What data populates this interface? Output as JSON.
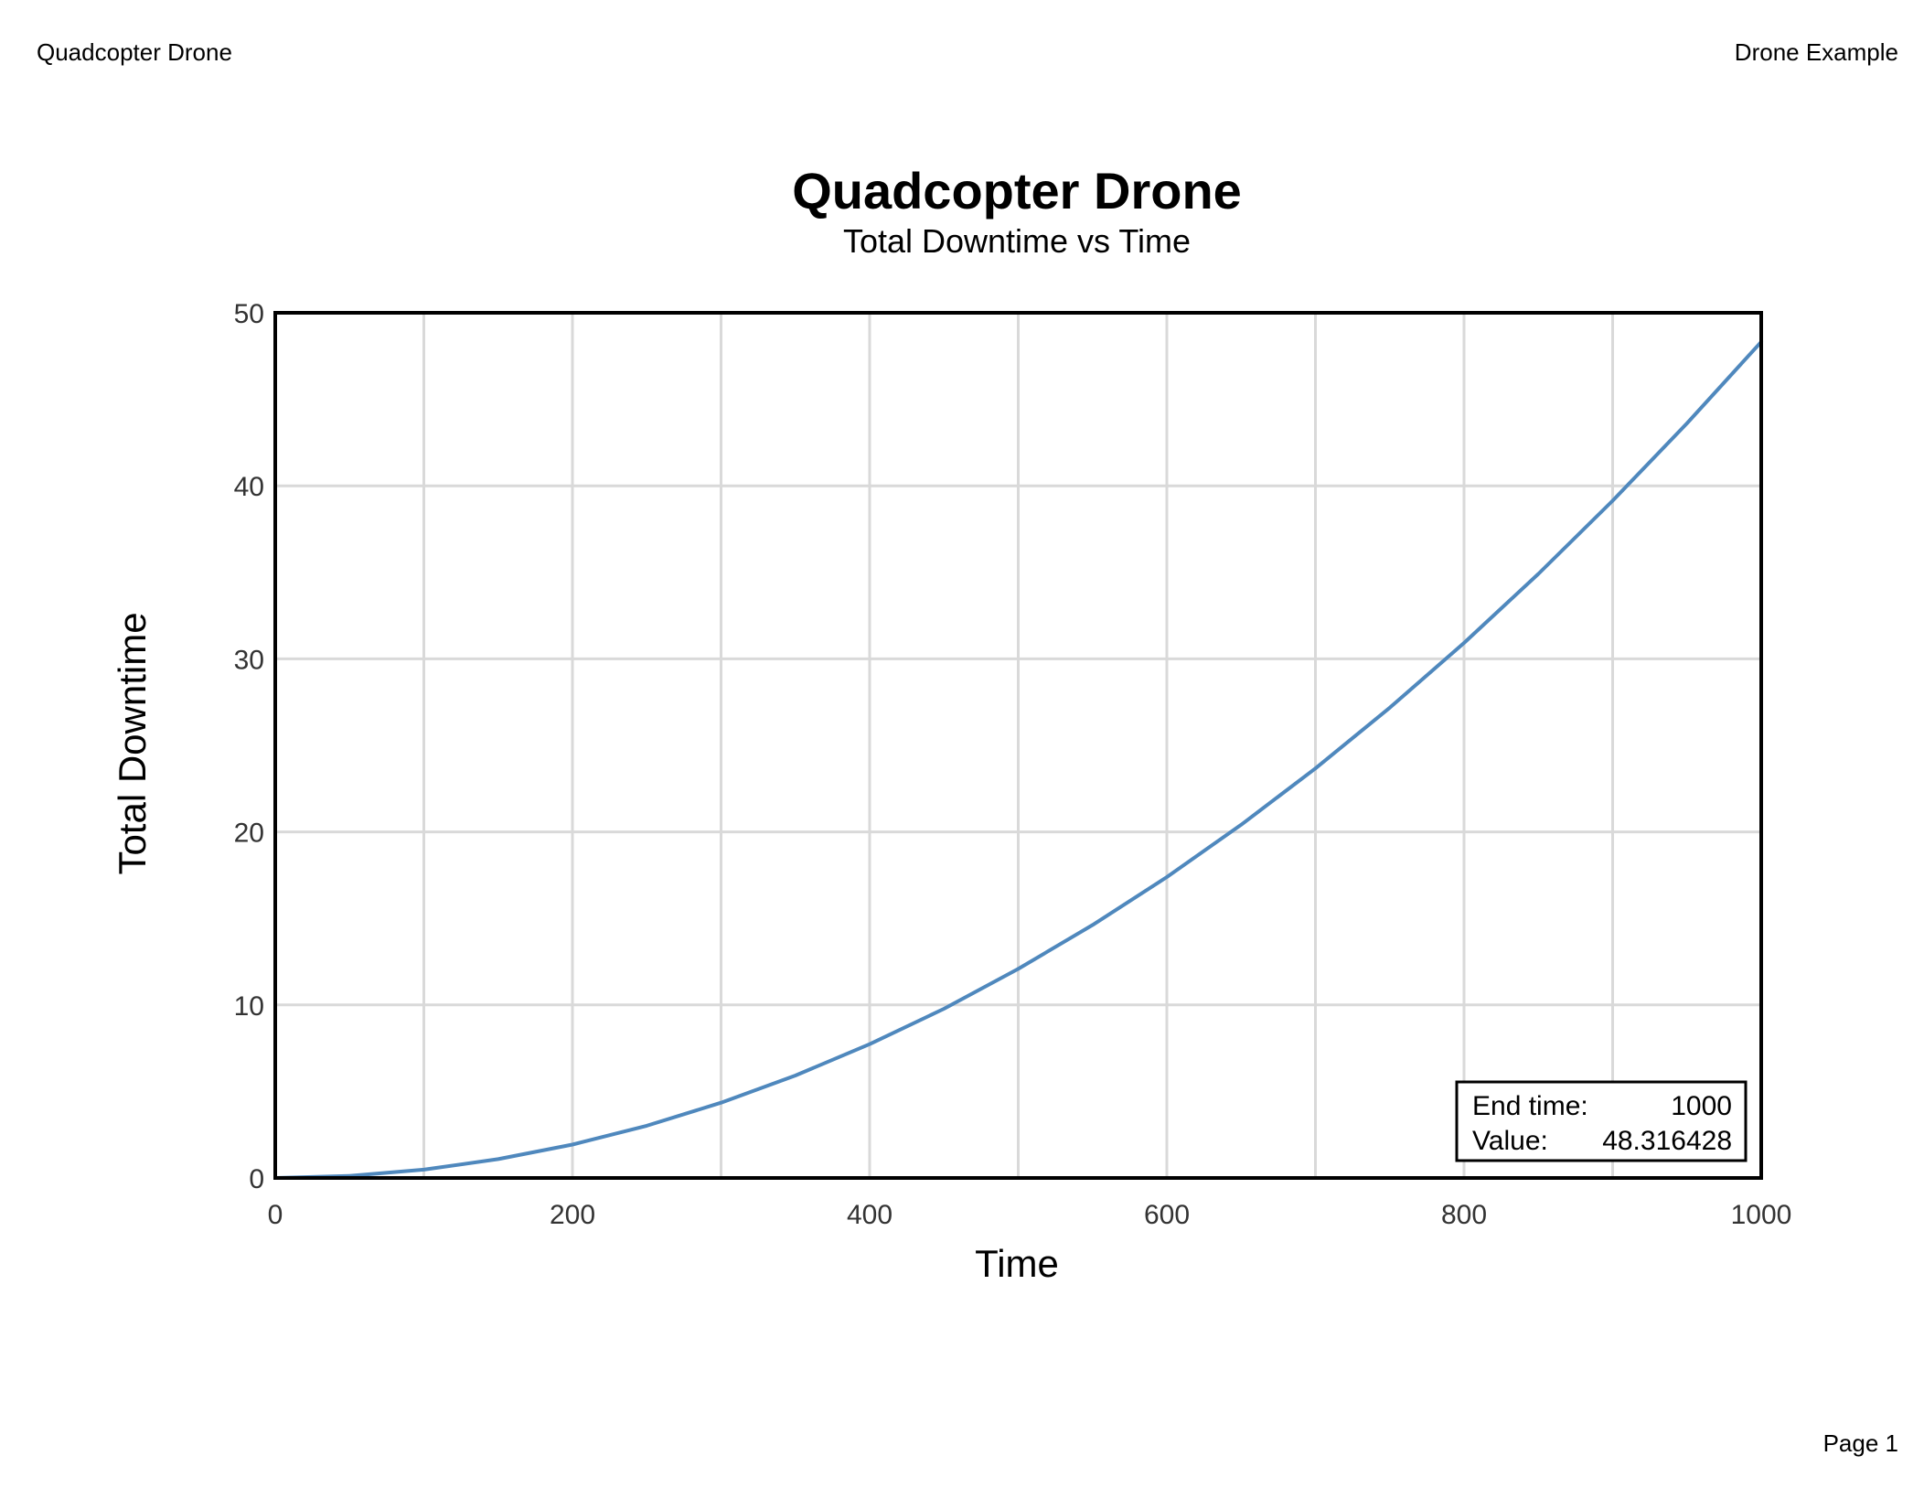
{
  "header": {
    "left": "Quadcopter Drone",
    "right": "Drone Example"
  },
  "footer": {
    "page": "Page 1"
  },
  "colors": {
    "series": "#4f88bd",
    "grid": "#d9d9d9",
    "frame": "#000000"
  },
  "chart_data": {
    "type": "line",
    "title": "Quadcopter Drone",
    "subtitle": "Total Downtime vs Time",
    "xlabel": "Time",
    "ylabel": "Total Downtime",
    "xlim": [
      0,
      1000
    ],
    "ylim": [
      0,
      50
    ],
    "xticks": [
      0,
      200,
      400,
      600,
      800,
      1000
    ],
    "yticks": [
      0,
      10,
      20,
      30,
      40,
      50
    ],
    "xgrid": [
      0,
      100,
      200,
      300,
      400,
      500,
      600,
      700,
      800,
      900,
      1000
    ],
    "ygrid": [
      0,
      10,
      20,
      30,
      40,
      50
    ],
    "grid": true,
    "series": [
      {
        "color": "#4f88bd",
        "x": [
          0,
          50,
          100,
          150,
          200,
          250,
          300,
          350,
          400,
          450,
          500,
          550,
          600,
          650,
          700,
          750,
          800,
          850,
          900,
          950,
          1000
        ],
        "y": [
          0,
          0.12,
          0.48,
          1.09,
          1.93,
          3.02,
          4.35,
          5.92,
          7.73,
          9.78,
          12.08,
          14.62,
          17.39,
          20.41,
          23.67,
          27.18,
          30.92,
          34.91,
          39.14,
          43.61,
          48.32
        ]
      }
    ],
    "annotation": {
      "position": "bottom-right",
      "end_time_label": "End time:",
      "end_time_value": "1000",
      "value_label": "Value:",
      "value_value": "48.316428"
    }
  }
}
